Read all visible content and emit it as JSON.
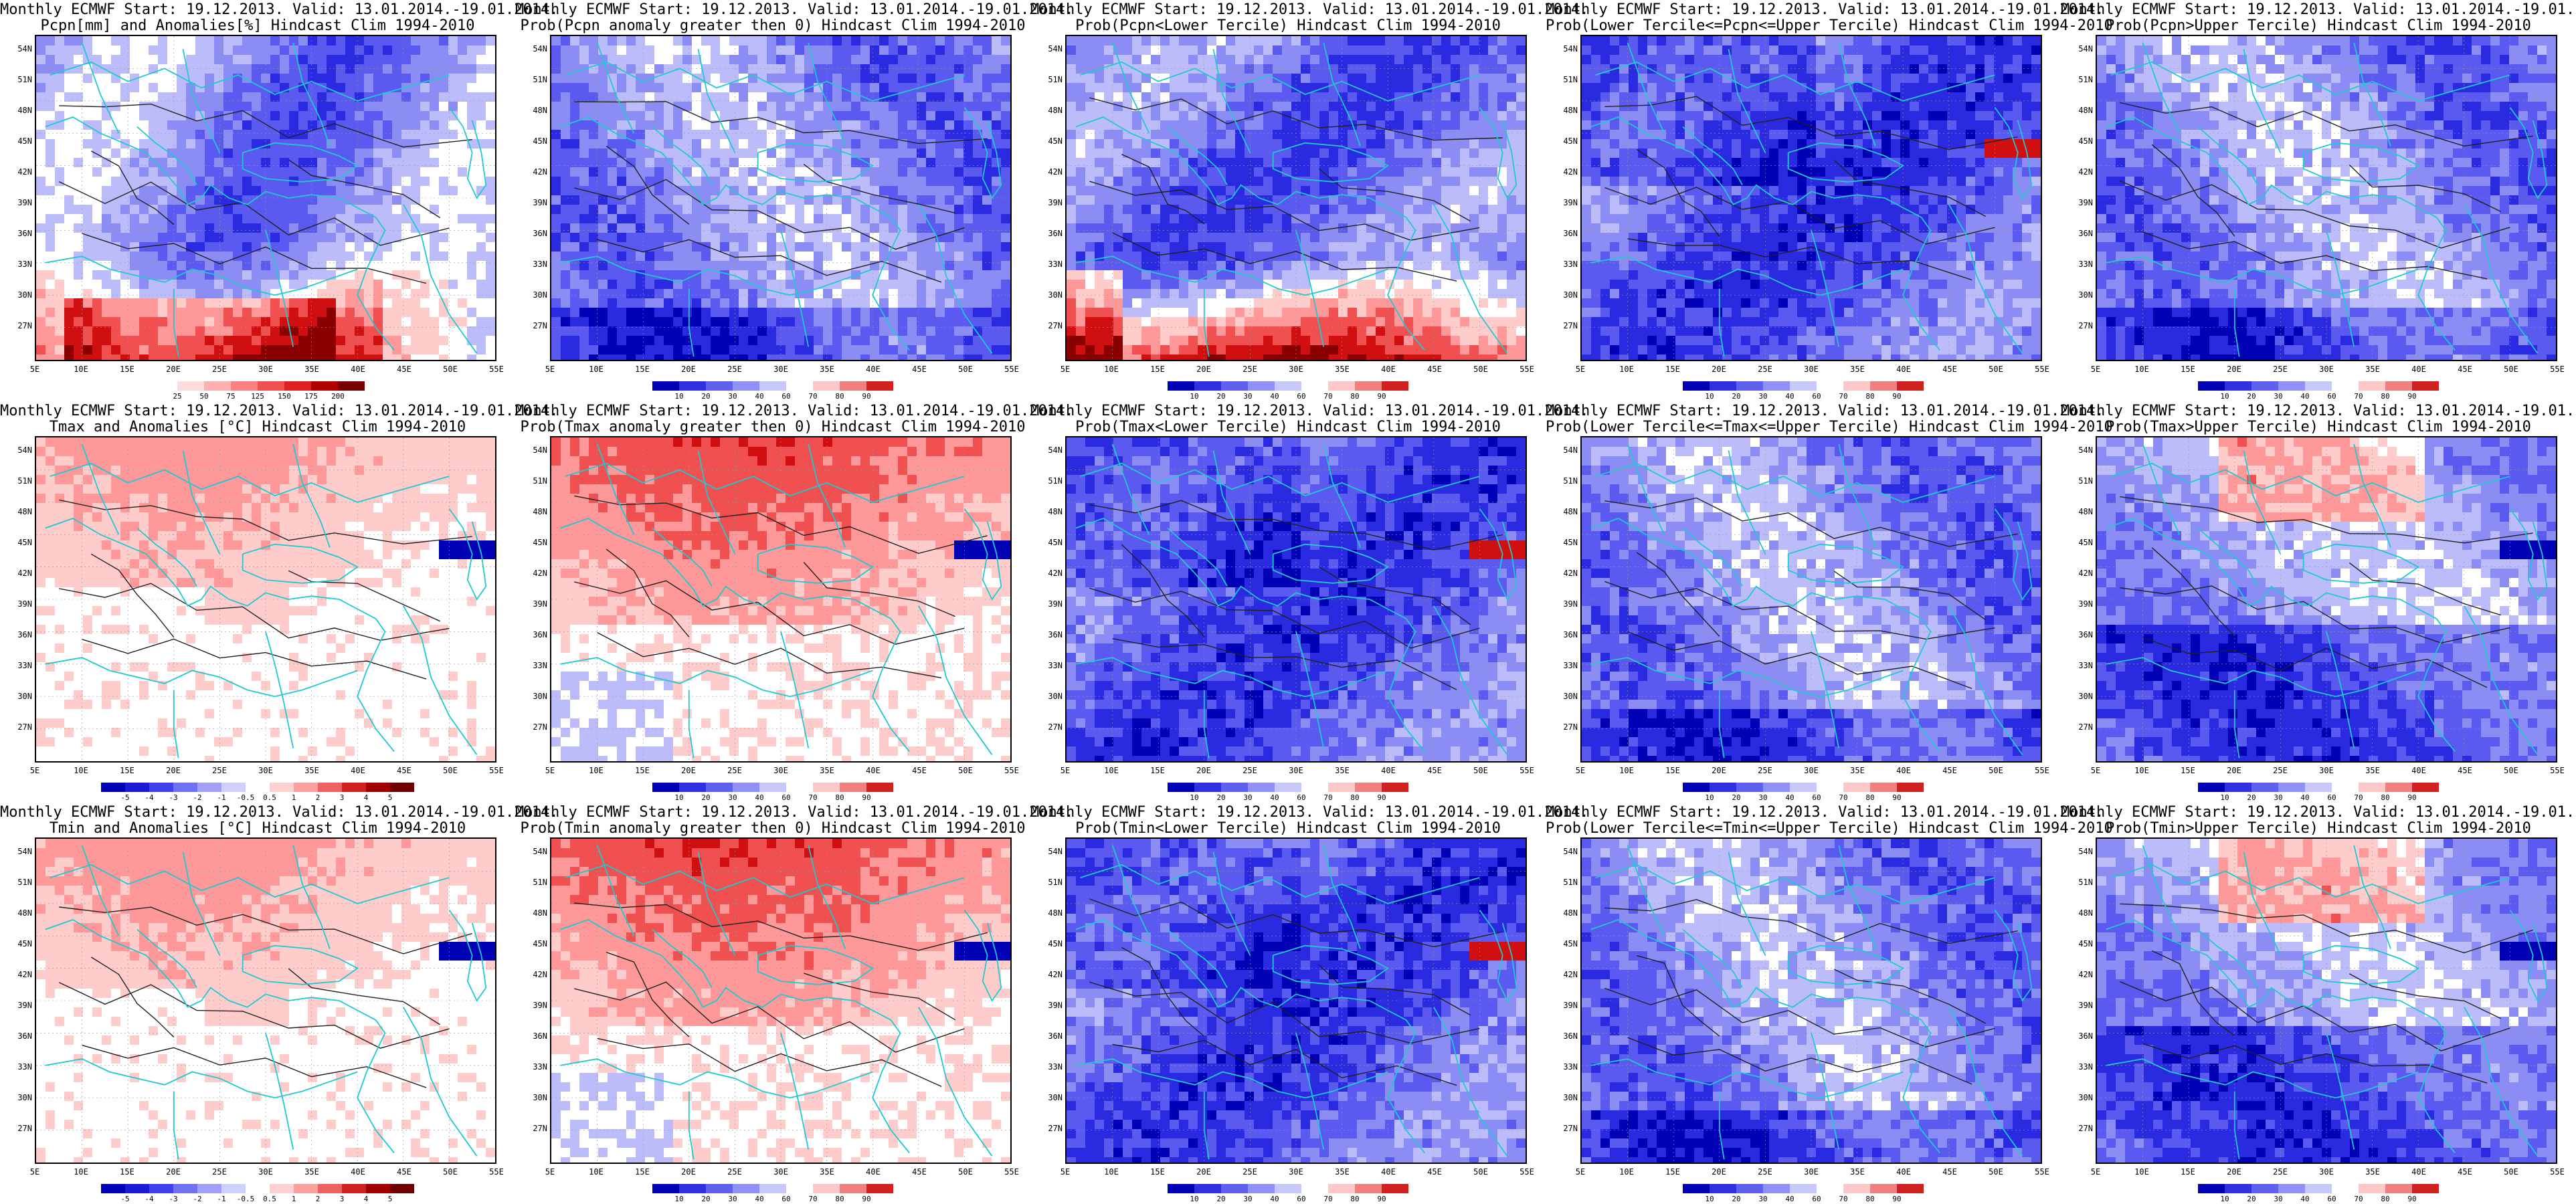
{
  "header_line1": "Monthly ECMWF Start: 19.12.2013. Valid: 13.01.2014.-19.01.2014.",
  "lat_labels": [
    "54N",
    "51N",
    "48N",
    "45N",
    "42N",
    "39N",
    "36N",
    "33N",
    "30N",
    "27N"
  ],
  "lon_labels": [
    "5E",
    "10E",
    "15E",
    "20E",
    "25E",
    "30E",
    "35E",
    "40E",
    "45E",
    "50E",
    "55E"
  ],
  "colors": {
    "blue_scale": [
      "#0000b4",
      "#2a2ae0",
      "#5a5af0",
      "#8c8cf5",
      "#bcbcfa",
      "#ffffff",
      "#ffcccc",
      "#ff9898",
      "#f05050",
      "#d01010",
      "#8a0000"
    ],
    "coast": "#20c8d0",
    "contour": "#202020"
  },
  "panels": [
    {
      "id": "p1",
      "title": "Pcpn[mm] and Anomalies[%] Hindcast Clim 1994-2010",
      "theme": "pcpn_anom",
      "cbar": [
        "25",
        "50",
        "75",
        "125",
        "150",
        "175",
        "200"
      ],
      "cbar_type": "pos_red"
    },
    {
      "id": "p2",
      "title": "Prob(Pcpn anomaly greater then 0) Hindcast Clim 1994-2010",
      "theme": "blue_mix",
      "cbar": [
        "10",
        "20",
        "30",
        "40",
        "60",
        "70",
        "80",
        "90"
      ],
      "cbar_type": "prob"
    },
    {
      "id": "p3",
      "title": "Prob(Pcpn<Lower Tercile) Hindcast Clim 1994-2010",
      "theme": "pcpn_lower",
      "cbar": [
        "10",
        "20",
        "30",
        "40",
        "60",
        "70",
        "80",
        "90"
      ],
      "cbar_type": "prob"
    },
    {
      "id": "p4",
      "title": "Prob(Lower Tercile<=Pcpn<=Upper Tercile) Hindcast Clim 1994-2010",
      "theme": "blue_strong",
      "cbar": [
        "10",
        "20",
        "30",
        "40",
        "60",
        "70",
        "80",
        "90"
      ],
      "cbar_type": "prob"
    },
    {
      "id": "p5",
      "title": "Prob(Pcpn>Upper Tercile) Hindcast Clim 1994-2010",
      "theme": "blue_mix",
      "cbar": [
        "10",
        "20",
        "30",
        "40",
        "60",
        "70",
        "80",
        "90"
      ],
      "cbar_type": "prob"
    },
    {
      "id": "p6",
      "title": "Tmax and Anomalies [°C] Hindcast Clim 1994-2010",
      "theme": "temp_anom",
      "cbar": [
        "-5",
        "-4",
        "-3",
        "-2",
        "-1",
        "-0.5",
        "0.5",
        "1",
        "2",
        "3",
        "4",
        "5"
      ],
      "cbar_type": "anom"
    },
    {
      "id": "p7",
      "title": "Prob(Tmax anomaly greater then 0) Hindcast Clim 1994-2010",
      "theme": "temp_prob",
      "cbar": [
        "10",
        "20",
        "30",
        "40",
        "60",
        "70",
        "80",
        "90"
      ],
      "cbar_type": "prob"
    },
    {
      "id": "p8",
      "title": "Prob(Tmax<Lower Tercile) Hindcast Clim 1994-2010",
      "theme": "blue_strong",
      "cbar": [
        "10",
        "20",
        "30",
        "40",
        "60",
        "70",
        "80",
        "90"
      ],
      "cbar_type": "prob"
    },
    {
      "id": "p9",
      "title": "Prob(Lower Tercile<=Tmax<=Upper Tercile) Hindcast Clim 1994-2010",
      "theme": "blue_mix",
      "cbar": [
        "10",
        "20",
        "30",
        "40",
        "60",
        "70",
        "80",
        "90"
      ],
      "cbar_type": "prob"
    },
    {
      "id": "p10",
      "title": "Prob(Tmax>Upper Tercile) Hindcast Clim 1994-2010",
      "theme": "upper_mix",
      "cbar": [
        "10",
        "20",
        "30",
        "40",
        "60",
        "70",
        "80",
        "90"
      ],
      "cbar_type": "prob"
    },
    {
      "id": "p11",
      "title": "Tmin and Anomalies [°C] Hindcast Clim 1994-2010",
      "theme": "temp_anom",
      "cbar": [
        "-5",
        "-4",
        "-3",
        "-2",
        "-1",
        "-0.5",
        "0.5",
        "1",
        "2",
        "3",
        "4",
        "5"
      ],
      "cbar_type": "anom"
    },
    {
      "id": "p12",
      "title": "Prob(Tmin anomaly greater then 0) Hindcast Clim 1994-2010",
      "theme": "temp_prob",
      "cbar": [
        "10",
        "20",
        "30",
        "40",
        "60",
        "70",
        "80",
        "90"
      ],
      "cbar_type": "prob"
    },
    {
      "id": "p13",
      "title": "Prob(Tmin<Lower Tercile) Hindcast Clim 1994-2010",
      "theme": "blue_strong",
      "cbar": [
        "10",
        "20",
        "30",
        "40",
        "60",
        "70",
        "80",
        "90"
      ],
      "cbar_type": "prob"
    },
    {
      "id": "p14",
      "title": "Prob(Lower Tercile<=Tmin<=Upper Tercile) Hindcast Clim 1994-2010",
      "theme": "blue_mix",
      "cbar": [
        "10",
        "20",
        "30",
        "40",
        "60",
        "70",
        "80",
        "90"
      ],
      "cbar_type": "prob"
    },
    {
      "id": "p15",
      "title": "Prob(Tmin>Upper Tercile) Hindcast Clim 1994-2010",
      "theme": "upper_mix",
      "cbar": [
        "10",
        "20",
        "30",
        "40",
        "60",
        "70",
        "80",
        "90"
      ],
      "cbar_type": "prob"
    }
  ]
}
